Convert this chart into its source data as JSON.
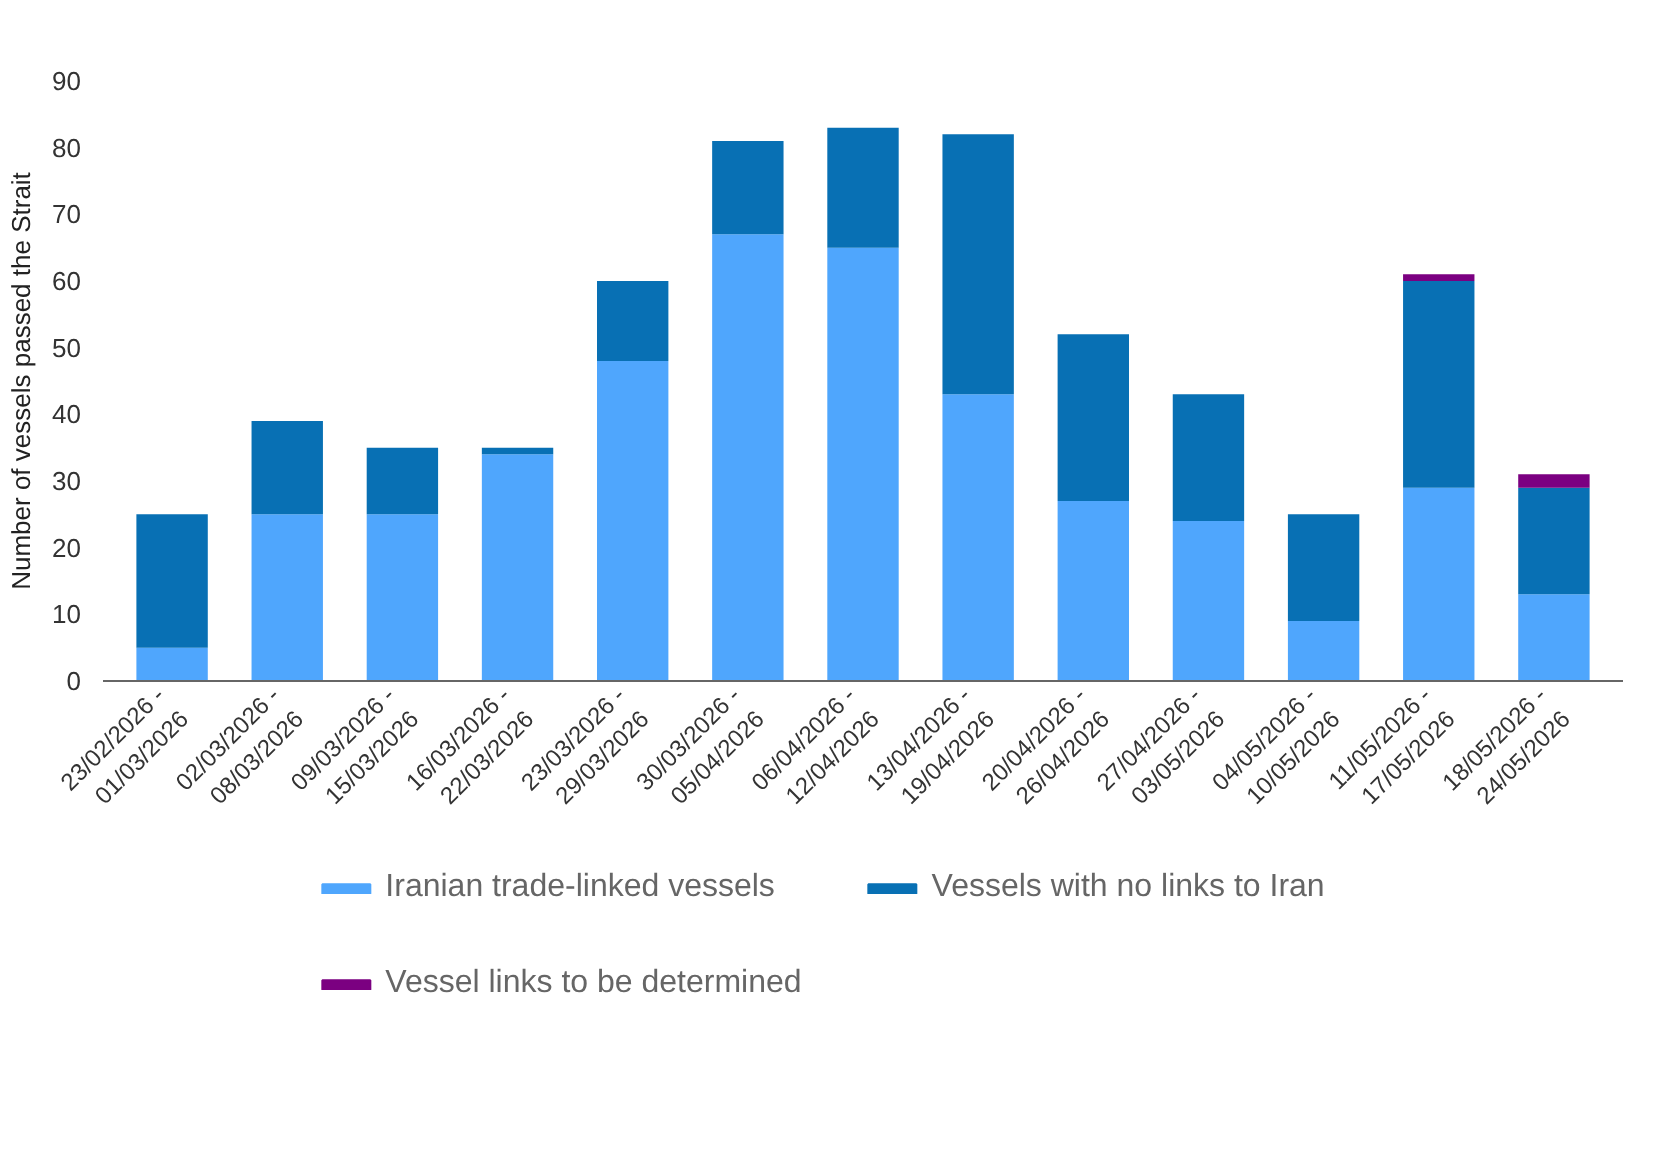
{
  "chart_data": {
    "type": "bar",
    "stacked": true,
    "ylabel": "Number of vessels passed the Strait",
    "categories": [
      "23/02/2026 -\n01/03/2026",
      "02/03/2026 -\n08/03/2026",
      "09/03/2026 -\n15/03/2026",
      "16/03/2026 -\n22/03/2026",
      "23/03/2026 -\n29/03/2026",
      "30/03/2026 -\n05/04/2026",
      "06/04/2026 -\n12/04/2026",
      "13/04/2026 -\n19/04/2026",
      "20/04/2026 -\n26/04/2026",
      "27/04/2026 -\n03/05/2026",
      "04/05/2026 -\n10/05/2026",
      "11/05/2026 -\n17/05/2026",
      "18/05/2026 -\n24/05/2026"
    ],
    "series": [
      {
        "name": "Iranian trade-linked vessels",
        "color": "#4fa6fd",
        "values": [
          5,
          25,
          25,
          34,
          48,
          67,
          65,
          43,
          27,
          24,
          9,
          29,
          13
        ]
      },
      {
        "name": "Vessels with no links to Iran",
        "color": "#0870b4",
        "values": [
          20,
          14,
          10,
          1,
          12,
          14,
          18,
          39,
          25,
          19,
          16,
          31,
          16
        ]
      },
      {
        "name": "Vessel links to be determined",
        "color": "#7b0081",
        "values": [
          0,
          0,
          0,
          0,
          0,
          0,
          0,
          0,
          0,
          0,
          0,
          1,
          2
        ]
      }
    ],
    "ylim": [
      0,
      90
    ],
    "yticks": [
      0,
      10,
      20,
      30,
      40,
      50,
      60,
      70,
      80,
      90
    ],
    "grid": false,
    "legend": "bottom"
  }
}
